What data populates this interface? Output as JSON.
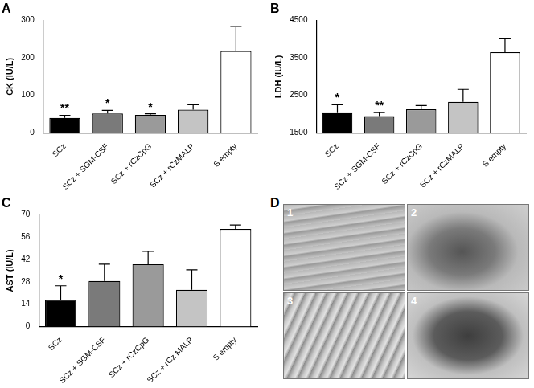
{
  "chart_data": [
    {
      "type": "bar",
      "title": "A",
      "y_label": "CK (IU/L)",
      "categories": [
        "SCz",
        "SCz + SGM-CSF",
        "SCz + rCzCpG",
        "SCz + rCzMALP",
        "S empty"
      ],
      "values": [
        40,
        52,
        48,
        62,
        218
      ],
      "errors": [
        7,
        8,
        3,
        13,
        65
      ],
      "significance": [
        "**",
        "*",
        "*",
        null,
        null
      ],
      "colors": [
        "#000000",
        "#7a7a7a",
        "#9a9a9a",
        "#c4c4c4",
        "#ffffff"
      ],
      "ylim": [
        0,
        300
      ],
      "yticks": [
        0,
        100,
        200,
        300
      ],
      "grid": false
    },
    {
      "type": "bar",
      "title": "B",
      "y_label": "LDH (IU/L)",
      "categories": [
        "SCz",
        "SCz + SGM-CSF",
        "SCz + rCzCpG",
        "SCz + rCzMALP",
        "S empty"
      ],
      "values": [
        2030,
        1930,
        2130,
        2330,
        3650
      ],
      "errors": [
        220,
        110,
        100,
        330,
        370
      ],
      "significance": [
        "*",
        "**",
        null,
        null,
        null
      ],
      "colors": [
        "#000000",
        "#7a7a7a",
        "#9a9a9a",
        "#c4c4c4",
        "#ffffff"
      ],
      "ylim": [
        1500,
        4500
      ],
      "yticks": [
        1500,
        2500,
        3500,
        4500
      ],
      "grid": false
    },
    {
      "type": "bar",
      "title": "C",
      "y_label": "AST (IU/L)",
      "categories": [
        "SCz",
        "SCz + SGM-CSF",
        "SCz + rCzCpG",
        "SCz + rCz MALP",
        "S empty"
      ],
      "values": [
        16.5,
        28.5,
        39,
        23,
        61
      ],
      "errors": [
        9,
        10.5,
        8,
        12.5,
        2.5
      ],
      "significance": [
        "*",
        null,
        null,
        null,
        null
      ],
      "colors": [
        "#000000",
        "#7a7a7a",
        "#9a9a9a",
        "#c4c4c4",
        "#ffffff"
      ],
      "ylim": [
        0,
        70
      ],
      "yticks": [
        0,
        14,
        28,
        42,
        56,
        70
      ],
      "grid": false
    }
  ],
  "panel_d": {
    "title": "D",
    "images": [
      "1",
      "2",
      "3",
      "4"
    ]
  }
}
